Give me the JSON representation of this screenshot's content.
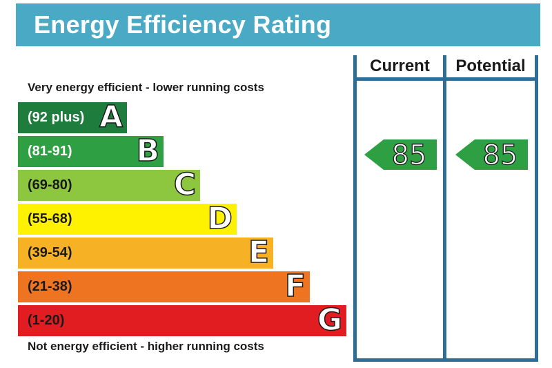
{
  "title": "Energy Efficiency Rating",
  "columns": {
    "current": "Current",
    "potential": "Potential"
  },
  "captions": {
    "top": "Very energy efficient - lower running costs",
    "bottom": "Not energy efficient - higher running costs"
  },
  "bands": [
    {
      "letter": "A",
      "range": "(92 plus)",
      "color": "#1e7c3d",
      "text_color": "#ffffff"
    },
    {
      "letter": "B",
      "range": "(81-91)",
      "color": "#2ea043",
      "text_color": "#ffffff"
    },
    {
      "letter": "C",
      "range": "(69-80)",
      "color": "#8dc63f",
      "text_color": "#1a1a1a"
    },
    {
      "letter": "D",
      "range": "(55-68)",
      "color": "#fff200",
      "text_color": "#1a1a1a"
    },
    {
      "letter": "E",
      "range": "(39-54)",
      "color": "#f7b125",
      "text_color": "#1a1a1a"
    },
    {
      "letter": "F",
      "range": "(21-38)",
      "color": "#ee7422",
      "text_color": "#1a1a1a"
    },
    {
      "letter": "G",
      "range": "(1-20)",
      "color": "#e11d21",
      "text_color": "#1a1a1a"
    }
  ],
  "ratings": {
    "current": {
      "value": "85",
      "band": "B"
    },
    "potential": {
      "value": "85",
      "band": "B"
    }
  },
  "colors": {
    "header": "#4aa9c4",
    "frame": "#2e6d95",
    "arrow": "#2ea043"
  }
}
